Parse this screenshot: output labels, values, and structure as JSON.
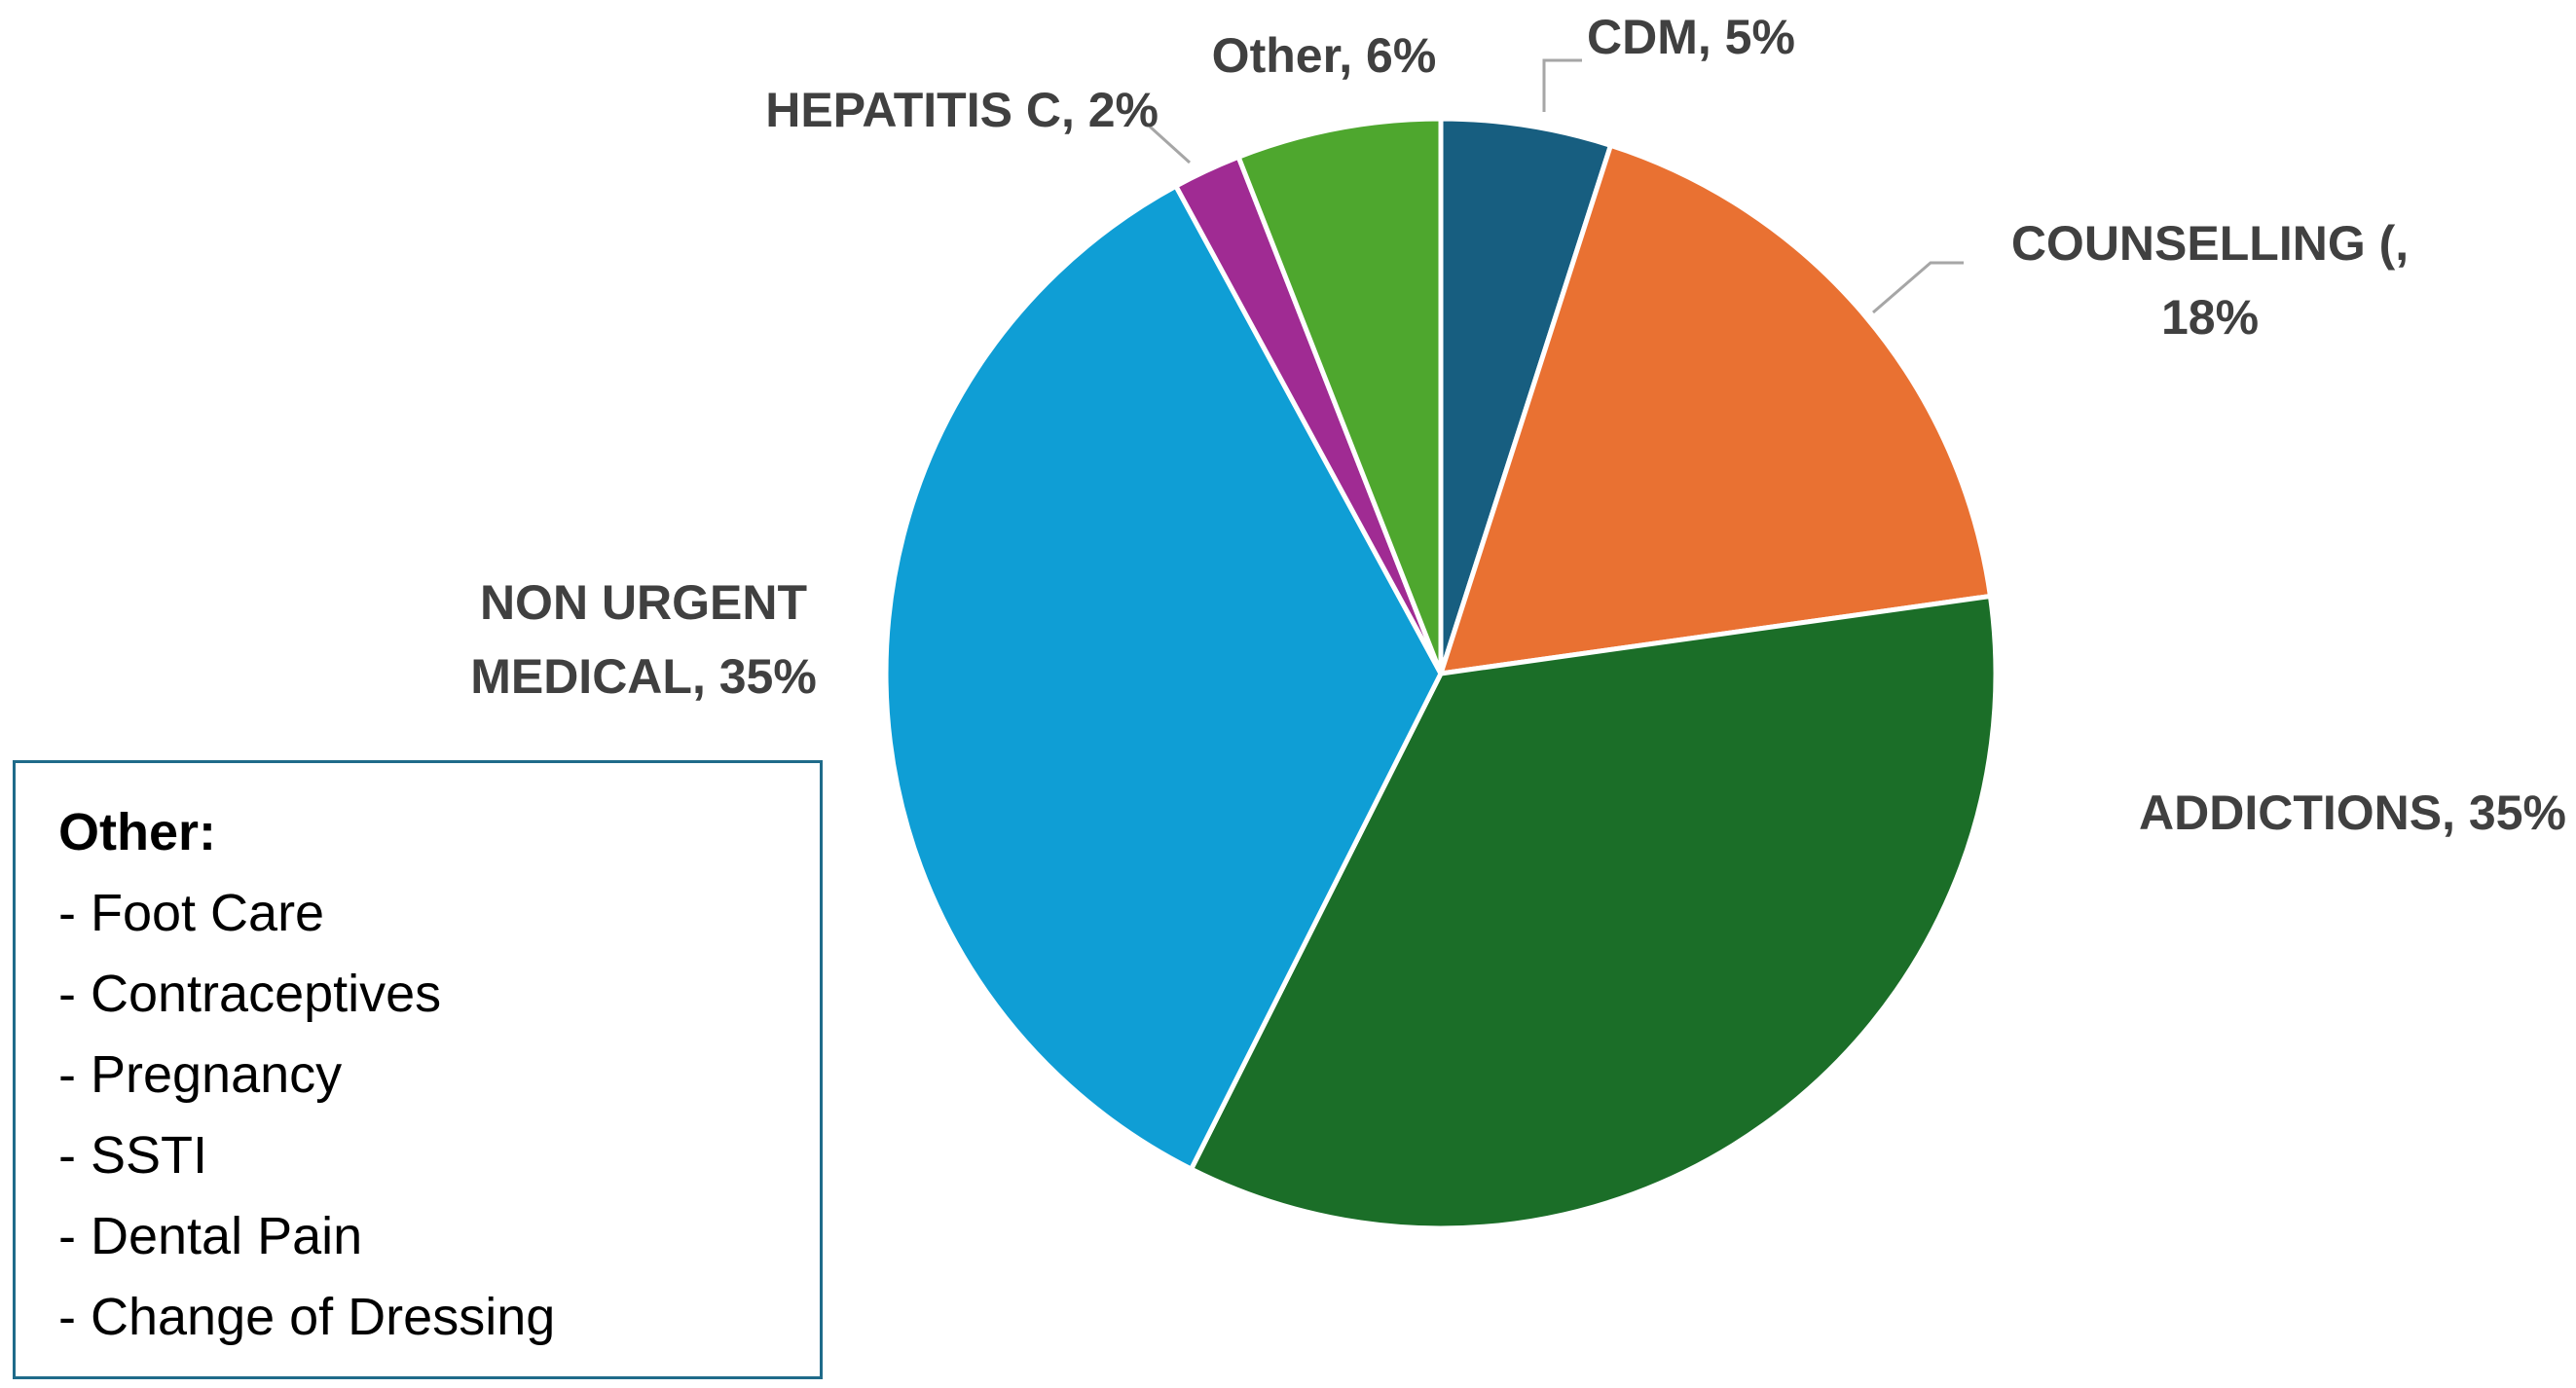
{
  "chart_data": {
    "type": "pie",
    "values": [
      5,
      18,
      35,
      35,
      2,
      6
    ],
    "value_labels": [
      "CDM, 5%",
      "COUNSELLING (, 18%",
      "ADDICTIONS, 35%",
      "NON URGENT MEDICAL, 35%",
      "HEPATITIS C, 2%",
      "Other, 6%"
    ],
    "colors": [
      "#175e80",
      "#e97132",
      "#1b6e28",
      "#0f9ed5",
      "#a02b93",
      "#4ea72e"
    ]
  },
  "note": {
    "title": "Other:",
    "items": [
      "- Foot Care",
      "- Contraceptives",
      "- Pregnancy",
      "- SSTI",
      "- Dental Pain",
      "- Change of Dressing"
    ]
  }
}
